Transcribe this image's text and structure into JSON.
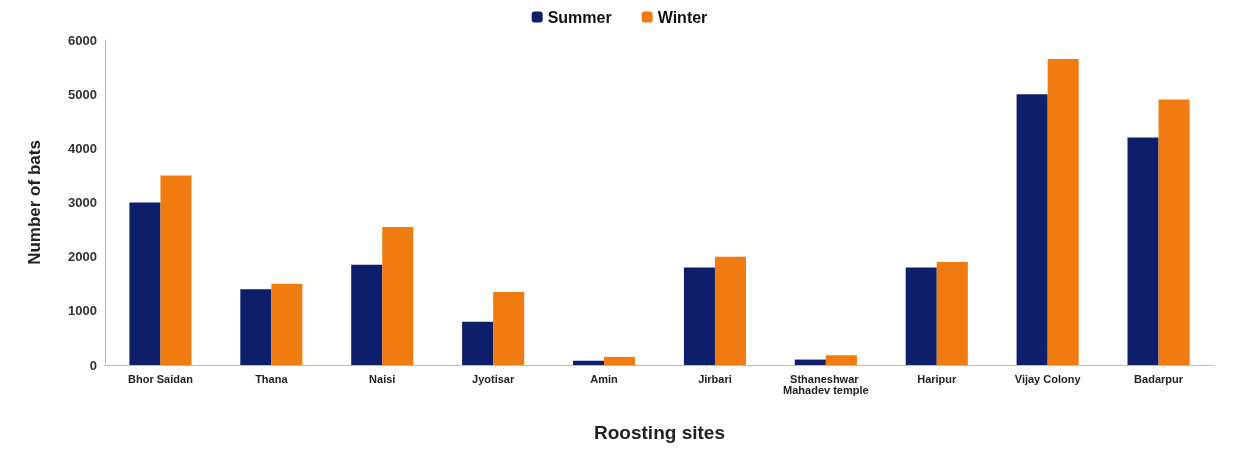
{
  "chart_data": {
    "type": "bar",
    "xlabel": "Roosting sites",
    "ylabel": "Number of bats",
    "categories": [
      "Bhor Saidan",
      "Thana",
      "Naisi",
      "Jyotisar",
      "Amin",
      "Jirbari",
      "Sthaneshwar Mahadev temple",
      "Haripur",
      "Vijay Colony",
      "Badarpur"
    ],
    "series": [
      {
        "name": "Summer",
        "color": "#0d1f6b",
        "values": [
          3000,
          1400,
          1850,
          800,
          80,
          1800,
          100,
          1800,
          5000,
          4200
        ]
      },
      {
        "name": "Winter",
        "color": "#f07b10",
        "values": [
          3500,
          1500,
          2550,
          1350,
          150,
          2000,
          180,
          1900,
          5650,
          4900
        ]
      }
    ],
    "ylim": [
      0,
      6000
    ],
    "yticks": [
      0,
      1000,
      2000,
      3000,
      4000,
      5000,
      6000
    ],
    "grid": false,
    "legend": "top"
  }
}
